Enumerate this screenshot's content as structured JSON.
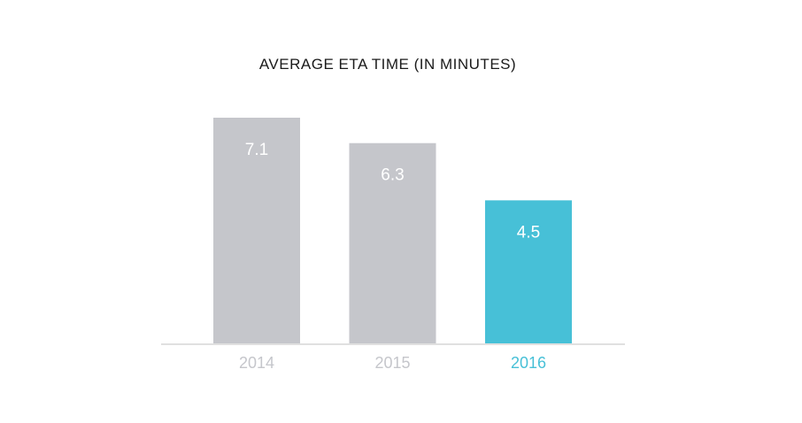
{
  "chart_data": {
    "type": "bar",
    "title": "AVERAGE ETA TIME (IN MINUTES)",
    "xlabel": "",
    "ylabel": "",
    "categories": [
      "2014",
      "2015",
      "2016"
    ],
    "values": [
      7.1,
      6.3,
      4.5
    ],
    "value_labels": [
      "7.1",
      "6.3",
      "4.5"
    ],
    "ylim": [
      0,
      7.1
    ],
    "grid": false,
    "legend": "none",
    "highlight_category": "2016",
    "colors": {
      "bar_default": "#c5c6cb",
      "bar_highlight": "#47c0d7",
      "tick_default": "#c5c6cb",
      "tick_highlight": "#47c0d7",
      "baseline": "#d6d6d6"
    }
  }
}
